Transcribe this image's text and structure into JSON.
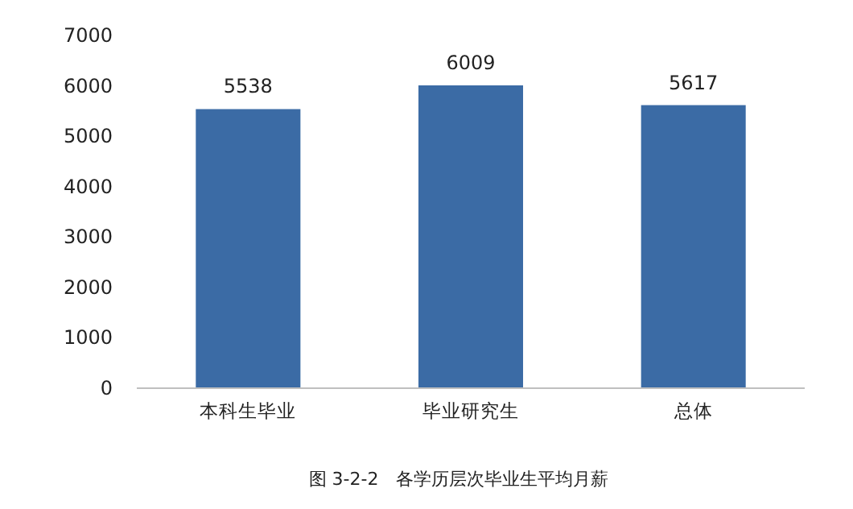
{
  "chart_data": {
    "type": "bar",
    "categories": [
      "本科生毕业",
      "毕业研究生",
      "总体"
    ],
    "values": [
      5538,
      6009,
      5617
    ],
    "color": "#3b6ba5",
    "ylim": [
      0,
      7000
    ],
    "yticks": [
      0,
      1000,
      2000,
      3000,
      4000,
      5000,
      6000,
      7000
    ],
    "data_labels": true,
    "annotations": [
      "图 3-2-2　各学历层次毕业生平均月薪"
    ]
  }
}
